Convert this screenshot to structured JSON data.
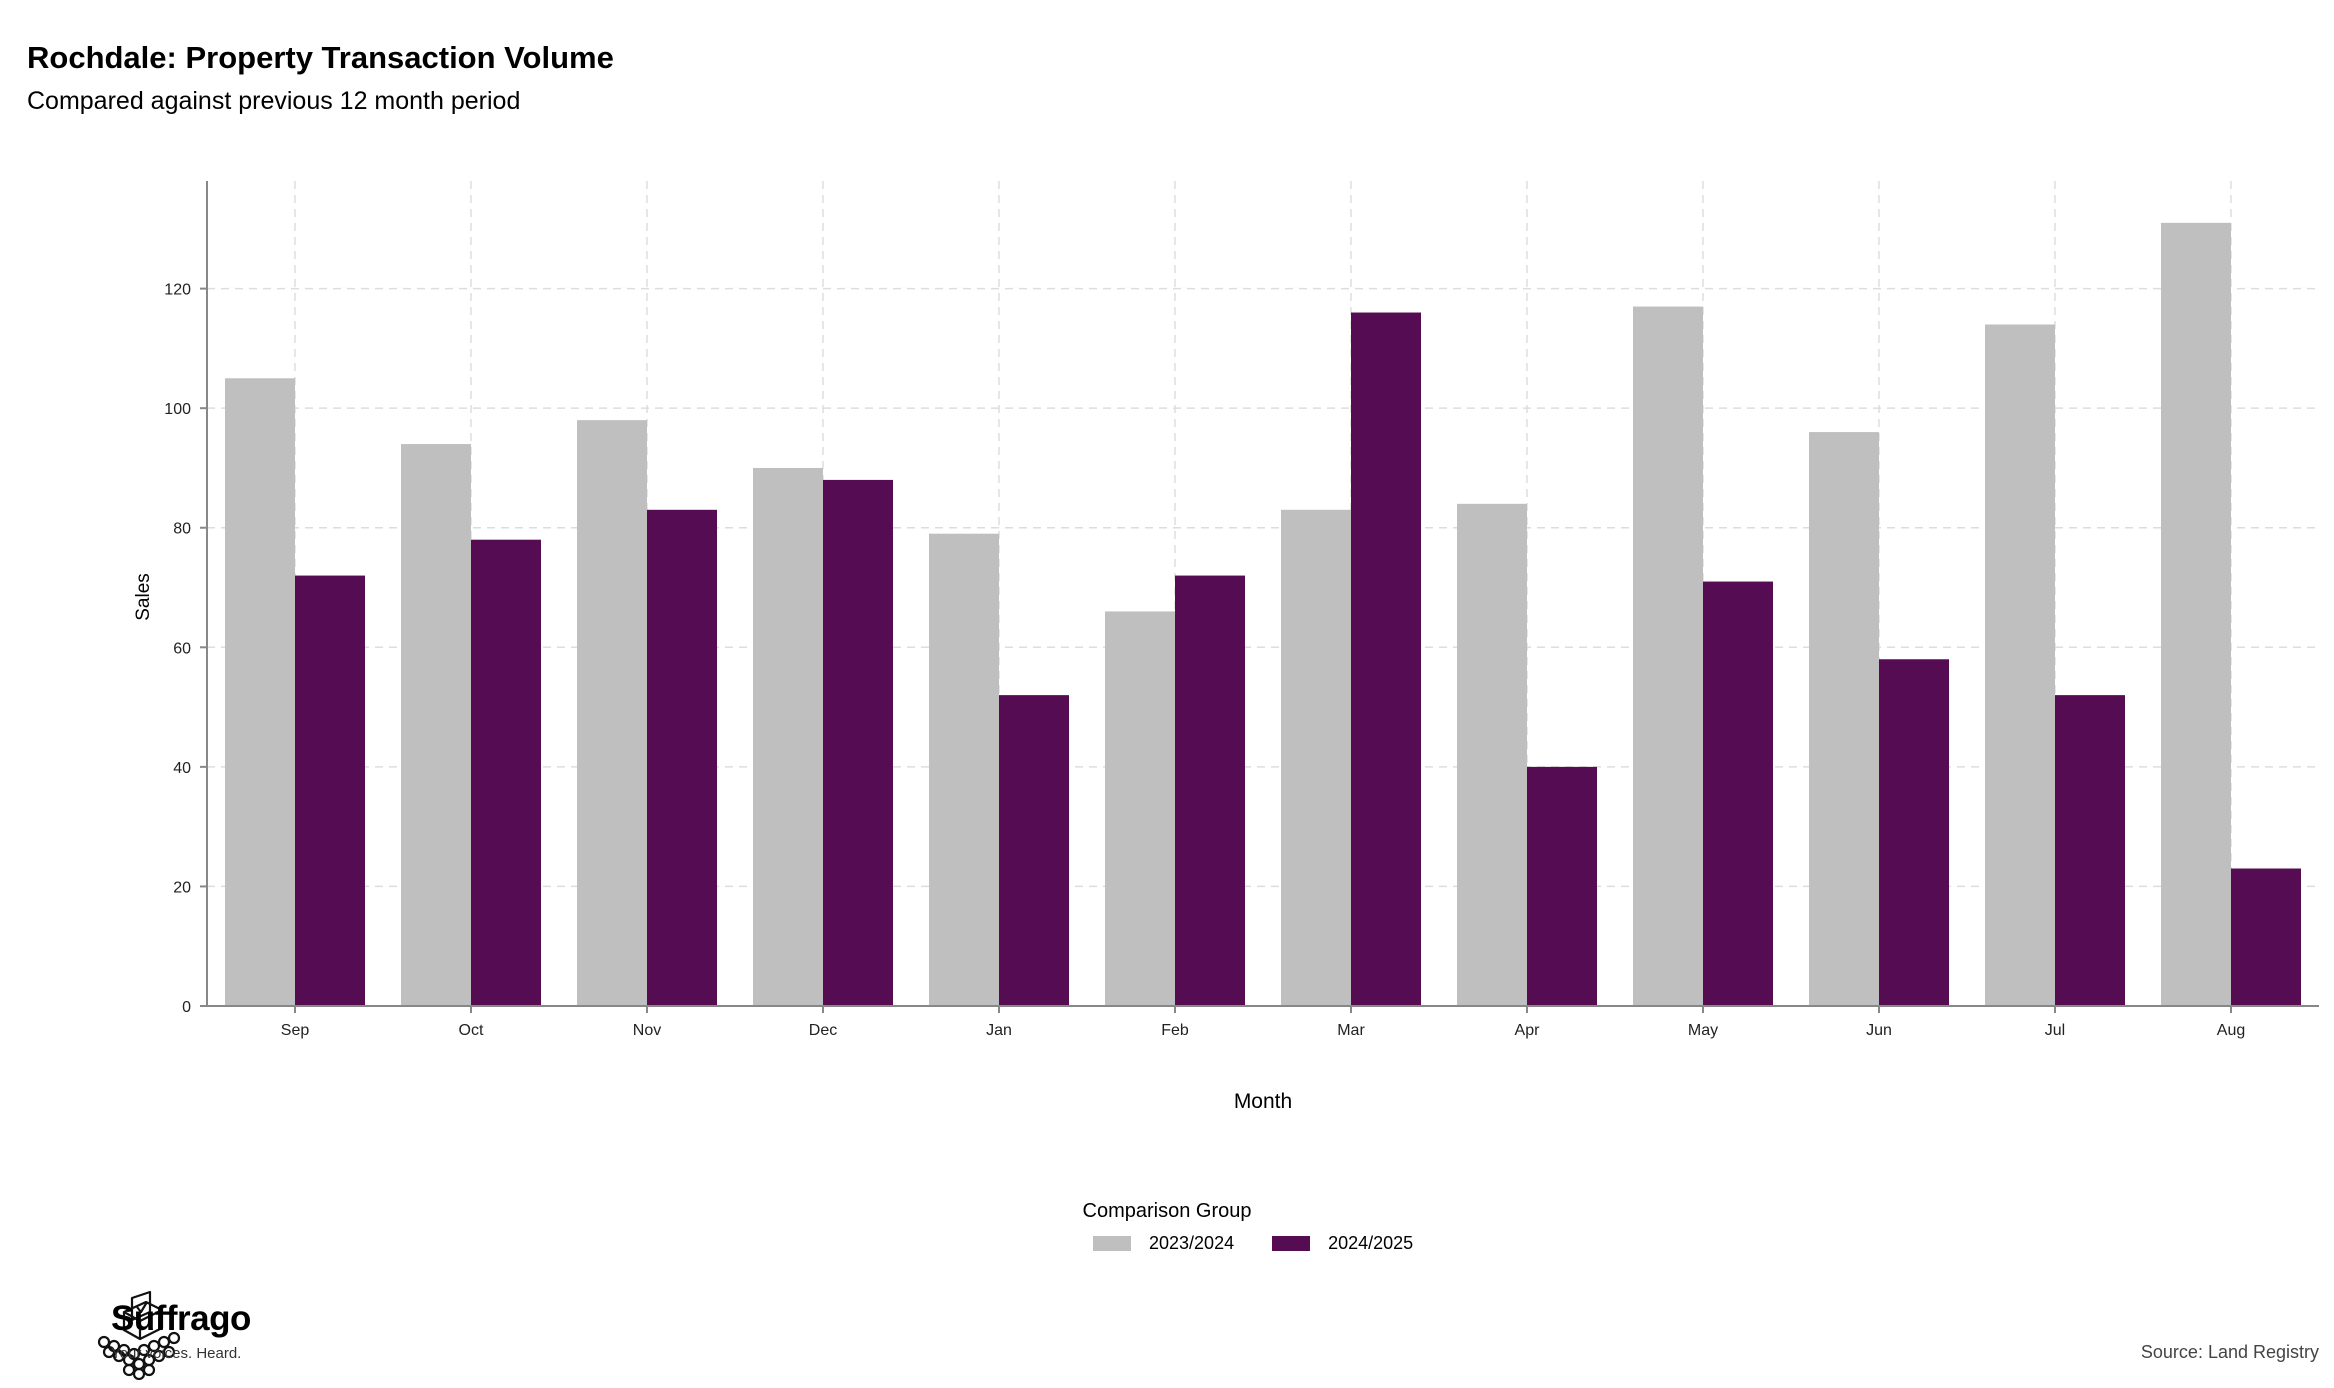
{
  "header": {
    "title": "Rochdale: Property Transaction Volume",
    "subtitle": "Compared against previous 12 month period"
  },
  "legend": {
    "title": "Comparison Group",
    "items": [
      {
        "label": "2023/2024",
        "color": "#bfbfbf"
      },
      {
        "label": "2024/2025",
        "color": "#560c52"
      }
    ]
  },
  "brand": {
    "name": "Suffrago",
    "tagline": "Your voices. Heard.",
    "icon": "ballot-box-icon"
  },
  "footer": {
    "source": "Source: Land Registry"
  },
  "chart_data": {
    "type": "bar",
    "xlabel": "Month",
    "ylabel": "Sales",
    "ylim": [
      0,
      138
    ],
    "yticks": [
      0,
      20,
      40,
      60,
      80,
      100,
      120
    ],
    "grid": true,
    "legend_position": "bottom",
    "categories": [
      "Sep",
      "Oct",
      "Nov",
      "Dec",
      "Jan",
      "Feb",
      "Mar",
      "Apr",
      "May",
      "Jun",
      "Jul",
      "Aug"
    ],
    "series": [
      {
        "name": "2023/2024",
        "color": "#bfbfbf",
        "values": [
          105,
          94,
          98,
          90,
          79,
          66,
          83,
          84,
          117,
          96,
          114,
          131
        ]
      },
      {
        "name": "2024/2025",
        "color": "#560c52",
        "values": [
          72,
          78,
          83,
          88,
          52,
          72,
          116,
          40,
          71,
          58,
          52,
          23
        ]
      }
    ]
  }
}
